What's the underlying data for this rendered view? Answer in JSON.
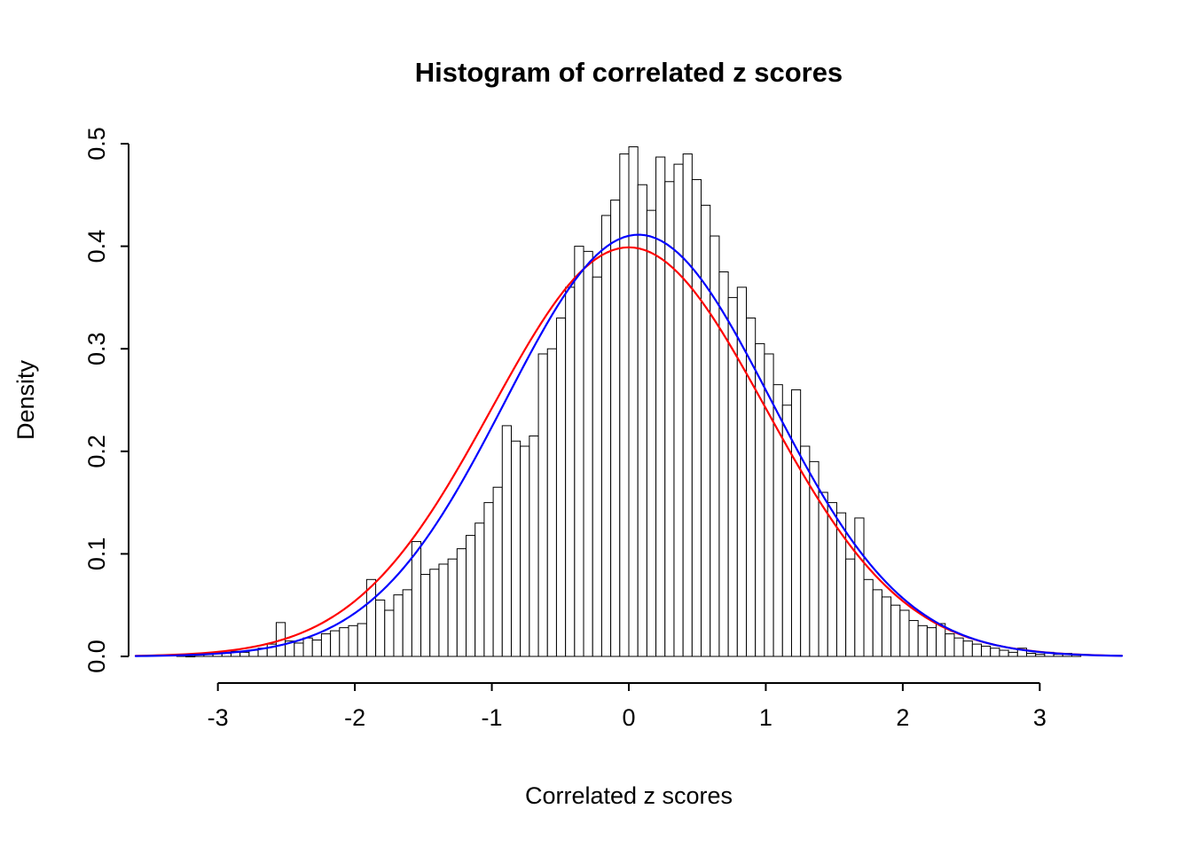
{
  "page": {
    "background": "#ffffff"
  },
  "chart_data": {
    "type": "bar",
    "subtype": "histogram",
    "title": "Histogram of correlated z scores",
    "xlabel": "Correlated z scores",
    "ylabel": "Density",
    "xlim": [
      -3.6,
      3.6
    ],
    "ylim": [
      0,
      0.5
    ],
    "grid": false,
    "legend": "none",
    "x_tick_labels": [
      "-3",
      "-2",
      "-1",
      "0",
      "1",
      "2",
      "3"
    ],
    "x_tick_values": [
      -3,
      -2,
      -1,
      0,
      1,
      2,
      3
    ],
    "y_tick_labels": [
      "0.0",
      "0.1",
      "0.2",
      "0.3",
      "0.4",
      "0.5"
    ],
    "y_tick_values": [
      0,
      0.1,
      0.2,
      0.3,
      0.4,
      0.5
    ],
    "bin_start": -3.3,
    "bin_width": 0.066,
    "bar_fill": "#ffffff",
    "bar_stroke": "#000000",
    "bar_heights": [
      0.002,
      0.0,
      0.003,
      0.002,
      0.004,
      0.003,
      0.005,
      0.004,
      0.006,
      0.008,
      0.012,
      0.033,
      0.015,
      0.013,
      0.018,
      0.016,
      0.022,
      0.025,
      0.028,
      0.03,
      0.032,
      0.075,
      0.055,
      0.045,
      0.06,
      0.065,
      0.112,
      0.08,
      0.085,
      0.09,
      0.095,
      0.105,
      0.118,
      0.13,
      0.15,
      0.165,
      0.225,
      0.21,
      0.205,
      0.215,
      0.295,
      0.3,
      0.33,
      0.36,
      0.4,
      0.395,
      0.37,
      0.43,
      0.445,
      0.49,
      0.497,
      0.46,
      0.435,
      0.487,
      0.463,
      0.48,
      0.49,
      0.465,
      0.44,
      0.41,
      0.375,
      0.35,
      0.36,
      0.33,
      0.305,
      0.295,
      0.265,
      0.245,
      0.26,
      0.205,
      0.19,
      0.16,
      0.15,
      0.14,
      0.095,
      0.135,
      0.075,
      0.065,
      0.058,
      0.05,
      0.045,
      0.035,
      0.03,
      0.028,
      0.032,
      0.022,
      0.018,
      0.015,
      0.012,
      0.01,
      0.008,
      0.006,
      0.004,
      0.008,
      0.003,
      0.002,
      0.004,
      0.002,
      0.003,
      0.002
    ],
    "curves": [
      {
        "name": "standard-normal-curve",
        "color": "#ff0000",
        "mean": 0.0,
        "sd": 1.0
      },
      {
        "name": "sample-density-curve",
        "color": "#0000ff",
        "mean": 0.07,
        "sd": 0.97
      }
    ]
  }
}
